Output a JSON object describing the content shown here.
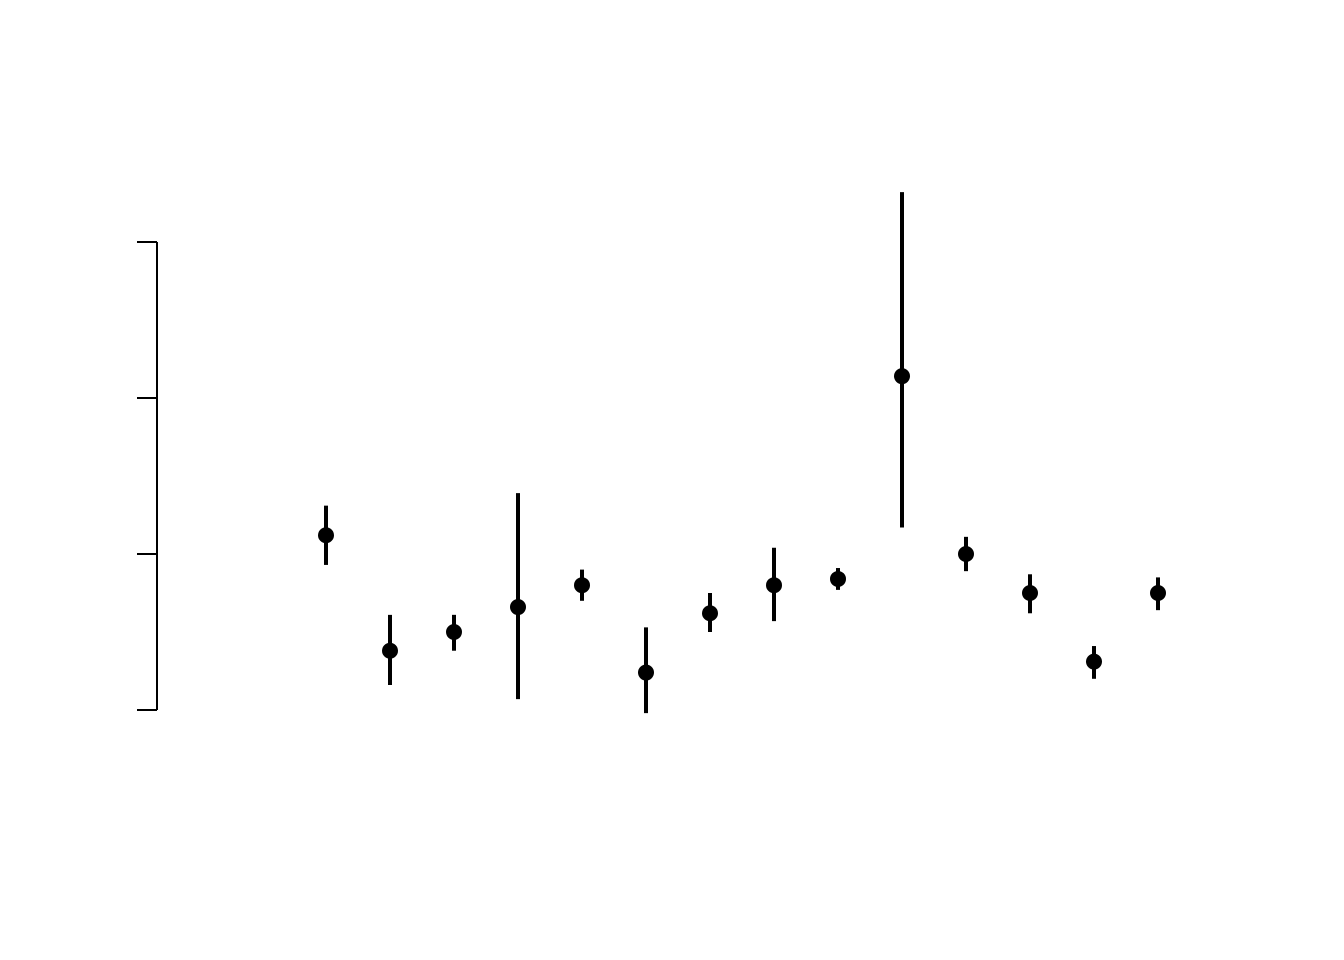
{
  "chart_data": {
    "type": "scatter",
    "title": "",
    "xlabel": "",
    "ylabel": "",
    "tick_labels_visible": false,
    "grid": false,
    "legend": "none",
    "y_axis": {
      "ticks": [
        0,
        1,
        2,
        3
      ],
      "range": [
        0,
        3
      ]
    },
    "x": [
      1,
      2,
      3,
      4,
      5,
      6,
      7,
      8,
      9,
      10,
      11,
      12,
      13,
      14
    ],
    "points": [
      {
        "x": 1,
        "y": 1.12,
        "lower": 0.93,
        "upper": 1.31
      },
      {
        "x": 2,
        "y": 0.38,
        "lower": 0.16,
        "upper": 0.61
      },
      {
        "x": 3,
        "y": 0.5,
        "lower": 0.38,
        "upper": 0.61
      },
      {
        "x": 4,
        "y": 0.66,
        "lower": 0.07,
        "upper": 1.39
      },
      {
        "x": 5,
        "y": 0.8,
        "lower": 0.7,
        "upper": 0.9
      },
      {
        "x": 6,
        "y": 0.24,
        "lower": -0.02,
        "upper": 0.53
      },
      {
        "x": 7,
        "y": 0.62,
        "lower": 0.5,
        "upper": 0.75
      },
      {
        "x": 8,
        "y": 0.8,
        "lower": 0.57,
        "upper": 1.04
      },
      {
        "x": 9,
        "y": 0.84,
        "lower": 0.77,
        "upper": 0.91
      },
      {
        "x": 10,
        "y": 2.14,
        "lower": 1.17,
        "upper": 3.32
      },
      {
        "x": 11,
        "y": 1.0,
        "lower": 0.89,
        "upper": 1.11
      },
      {
        "x": 12,
        "y": 0.75,
        "lower": 0.62,
        "upper": 0.87
      },
      {
        "x": 13,
        "y": 0.31,
        "lower": 0.2,
        "upper": 0.41
      },
      {
        "x": 14,
        "y": 0.75,
        "lower": 0.64,
        "upper": 0.85
      }
    ],
    "colors": {
      "points": "#000000",
      "error_bars": "#000000",
      "axis": "#000000",
      "background": "#ffffff"
    }
  }
}
